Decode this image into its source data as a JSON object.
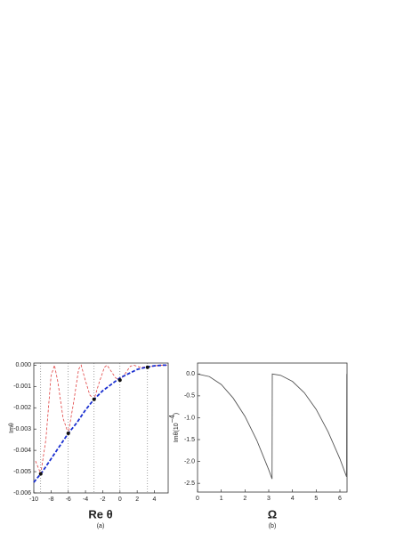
{
  "chart_data": [
    {
      "type": "line",
      "panel_label": "(a)",
      "x_label": "Re θ",
      "y_label": "Imθ",
      "xlim": [
        -10,
        5.6
      ],
      "xticks": [
        -10,
        -8,
        -6,
        -4,
        -2,
        0,
        2,
        4
      ],
      "ylim": [
        -0.006,
        0.0001
      ],
      "yticks": [
        {
          "value": 0,
          "label": "0.000"
        },
        {
          "value": -0.001,
          "label": "-0.001"
        },
        {
          "value": -0.002,
          "label": "-0.002"
        },
        {
          "value": -0.003,
          "label": "-0.003"
        },
        {
          "value": -0.004,
          "label": "-0.004"
        },
        {
          "value": -0.005,
          "label": "-0.005"
        },
        {
          "value": -0.006,
          "label": "-0.006"
        }
      ],
      "series": [
        {
          "color": "#e04040",
          "line_style": "dashed",
          "x": [
            -9.8,
            -9.2,
            -8.6,
            -8.0,
            -7.6,
            -7.2,
            -6.6,
            -6.0,
            -5.4,
            -4.8,
            -4.5,
            -4.1,
            -3.5,
            -3.0,
            -2.4,
            -1.8,
            -1.5,
            -1.0,
            -0.5,
            0,
            0.6,
            1.2,
            1.6,
            2.2,
            3.2,
            4.0,
            5.0,
            5.6
          ],
          "values": [
            -0.0045,
            -0.0051,
            -0.0035,
            -0.0005,
            0,
            -0.0008,
            -0.0025,
            -0.0032,
            -0.0018,
            -0.0002,
            0,
            -0.0006,
            -0.0014,
            -0.0016,
            -0.0008,
            -0.0001,
            0,
            -0.0003,
            -0.0006,
            -0.0007,
            -0.0004,
            -5e-05,
            0,
            -8e-05,
            -0.0001,
            -3e-05,
            0,
            0
          ]
        },
        {
          "color": "#1a2fd0",
          "line_style": "dashed-thick",
          "x": [
            -10,
            -9,
            -8,
            -7,
            -6,
            -5,
            -4,
            -3,
            -2,
            -1,
            0,
            1,
            2,
            3,
            4,
            5,
            5.6
          ],
          "values": [
            -0.0055,
            -0.005,
            -0.0044,
            -0.0038,
            -0.0032,
            -0.0027,
            -0.0021,
            -0.0016,
            -0.0012,
            -0.0009,
            -0.0006,
            -0.0004,
            -0.0002,
            -0.0001,
            -3e-05,
            0,
            0
          ]
        },
        {
          "color": "#111111",
          "line_style": "points",
          "guides": true,
          "x": [
            -9.2,
            -6.0,
            -3.0,
            0,
            3.2
          ],
          "values": [
            -0.0051,
            -0.0032,
            -0.0016,
            -0.0007,
            -0.0001
          ]
        }
      ]
    },
    {
      "type": "line",
      "panel_label": "(b)",
      "x_label": "Ω",
      "y_label": [
        "Imθ(10",
        "−4",
        ")"
      ],
      "xlim": [
        0,
        6.3
      ],
      "xticks": [
        0,
        1,
        2,
        3,
        4,
        5,
        6
      ],
      "ylim": [
        -2.7,
        0.25
      ],
      "yticks": [
        {
          "value": 0,
          "label": "0.0"
        },
        -0.5,
        {
          "value": -1,
          "label": "-1.0"
        },
        -1.5,
        {
          "value": -2,
          "label": "-2.0"
        },
        -2.5
      ],
      "series": [
        {
          "color": "#555555",
          "line_style": "solid",
          "x": [
            0,
            0.5,
            1,
            1.5,
            2,
            2.5,
            3,
            3.14,
            3.15,
            3.5,
            4,
            4.5,
            5,
            5.5,
            6,
            6.28,
            6.29
          ],
          "values": [
            0,
            -0.06,
            -0.24,
            -0.55,
            -0.97,
            -1.52,
            -2.19,
            -2.4,
            0,
            -0.03,
            -0.17,
            -0.43,
            -0.81,
            -1.32,
            -1.94,
            -2.35,
            0
          ]
        }
      ]
    }
  ]
}
